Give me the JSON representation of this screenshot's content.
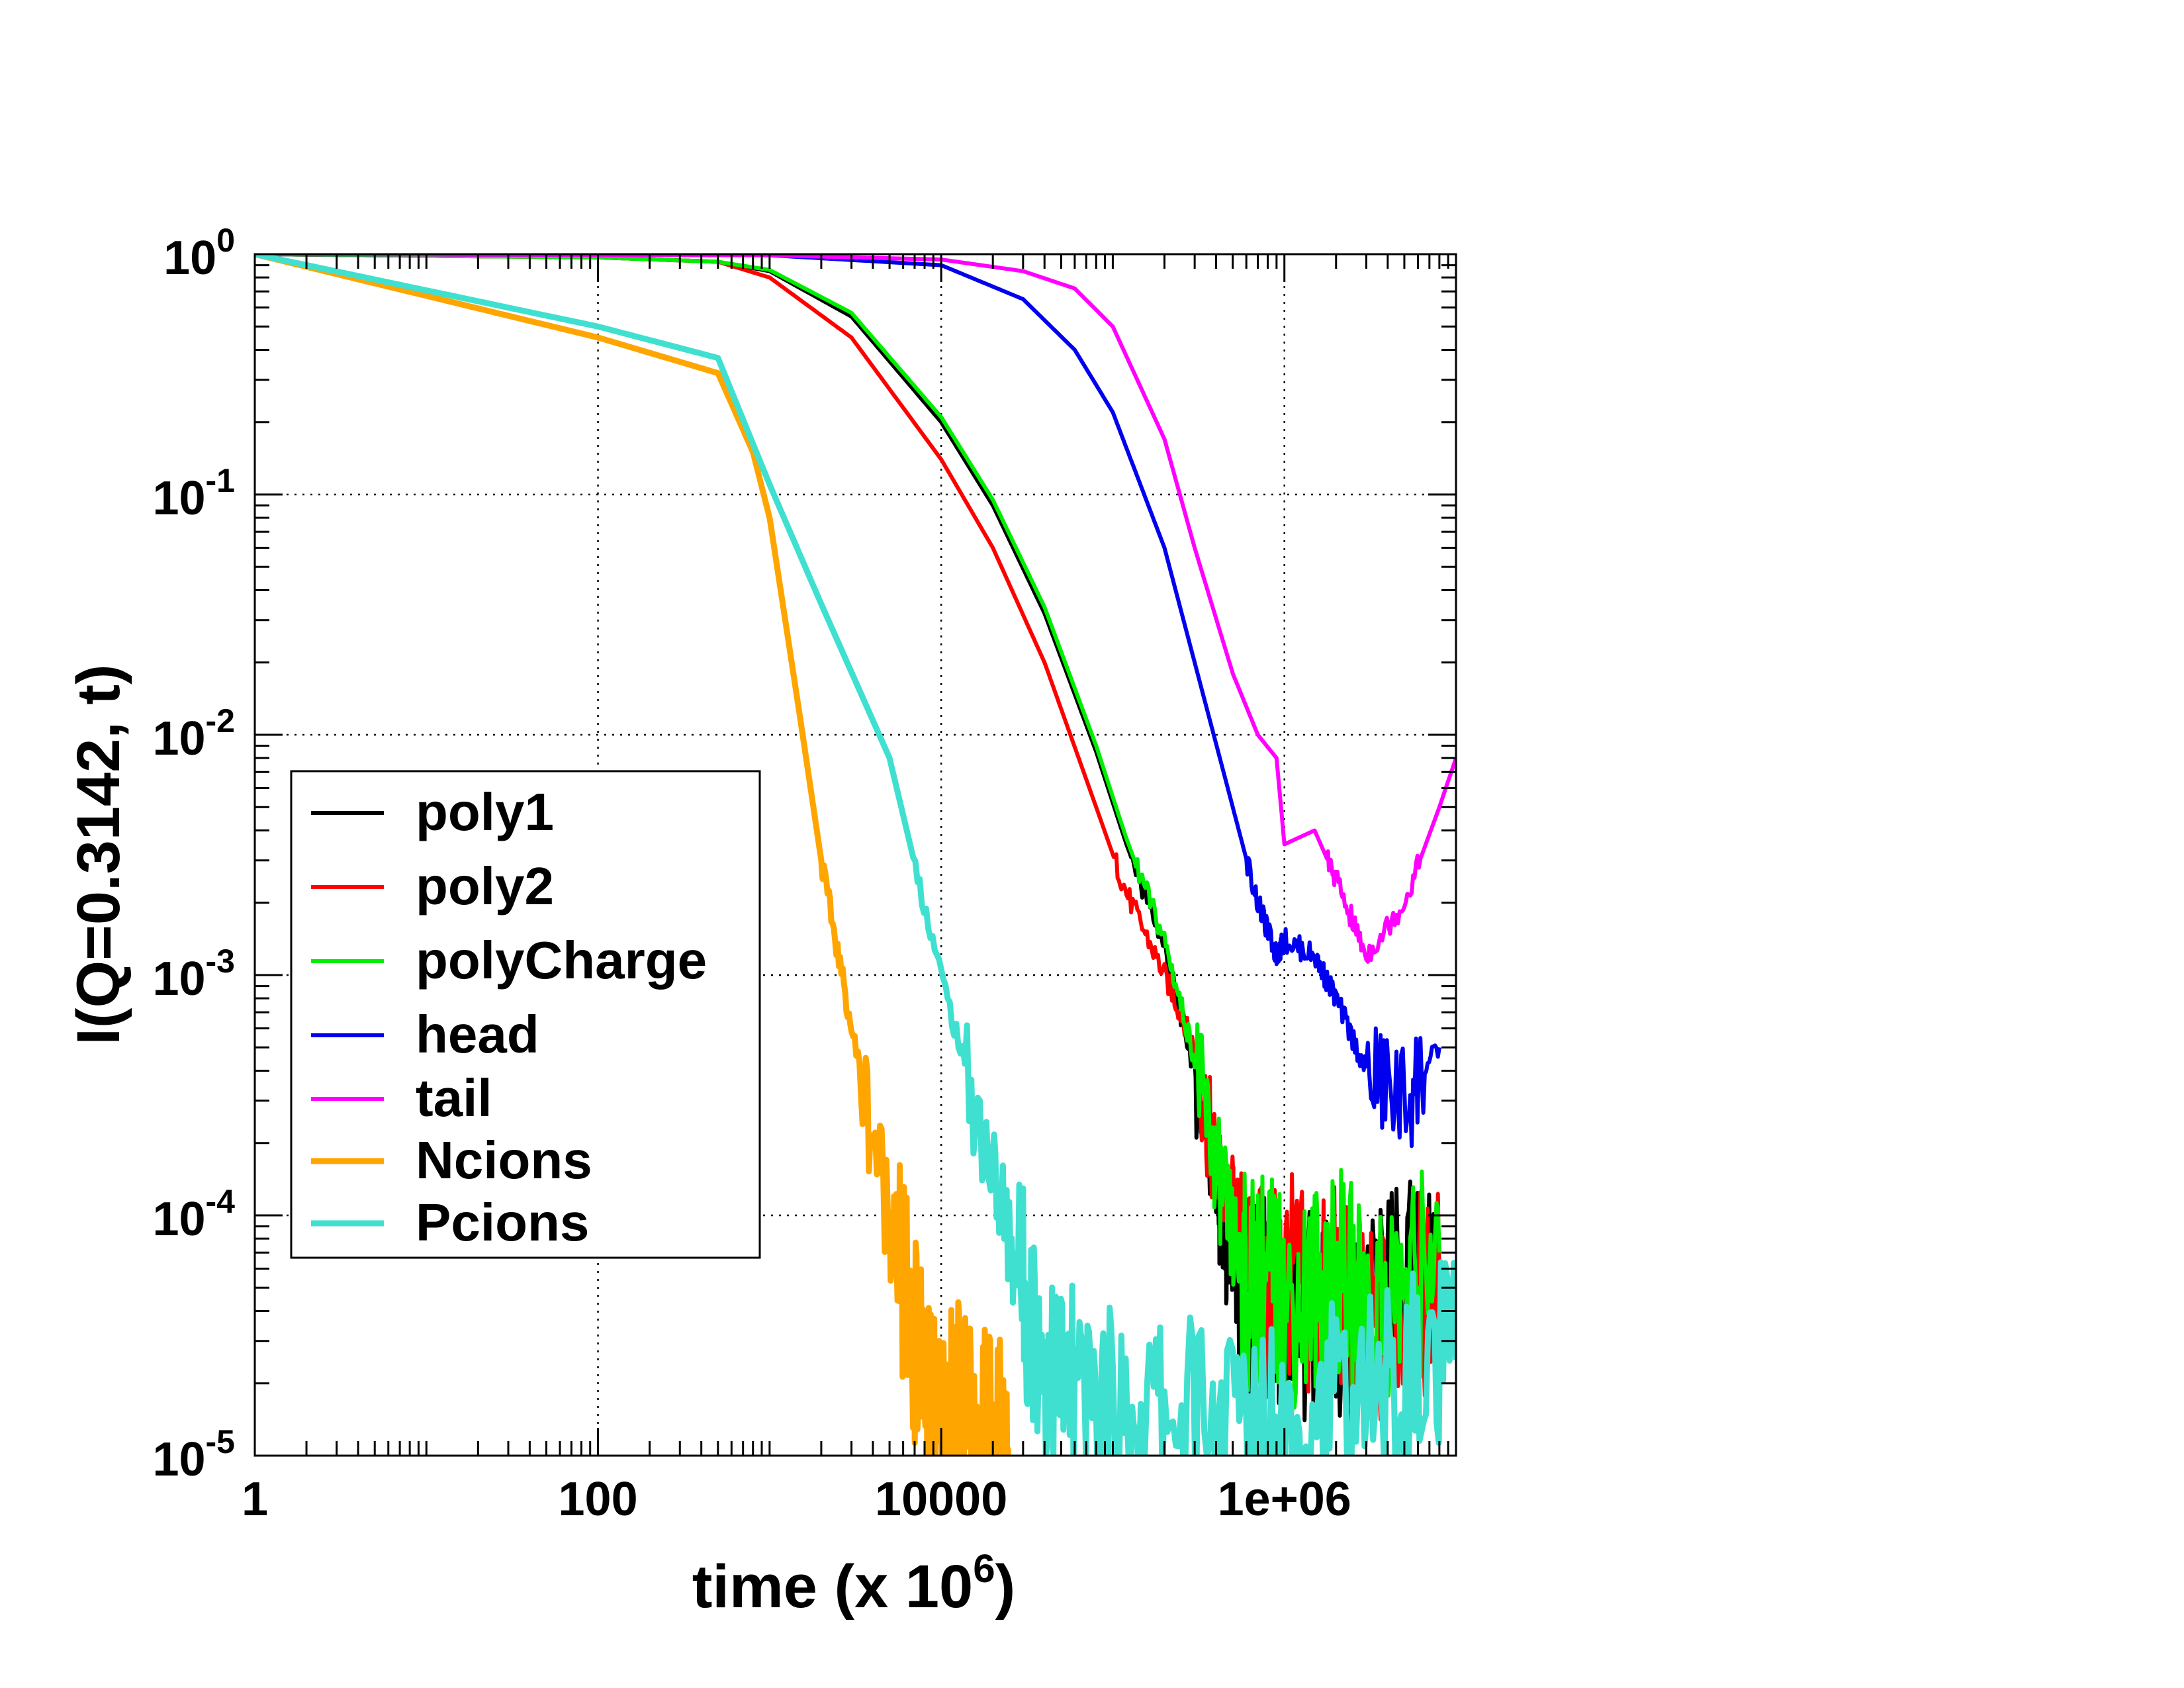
{
  "chart_data": {
    "type": "line",
    "xlabel": "time (x 10",
    "xlabel_sup": "6",
    "xlabel_close": ")",
    "ylabel": "I(Q=0.3142, t)",
    "x_scale": "log",
    "y_scale": "log",
    "xlim": [
      1,
      10000000
    ],
    "ylim": [
      1e-05,
      1
    ],
    "grid": true,
    "x_ticks": [
      {
        "value": 1,
        "label": "1"
      },
      {
        "value": 100,
        "label": "100"
      },
      {
        "value": 10000,
        "label": "10000"
      },
      {
        "value": 1000000,
        "label": "1e+06"
      }
    ],
    "y_ticks": [
      {
        "value": 1,
        "base": "10",
        "exp": "0"
      },
      {
        "value": 0.1,
        "base": "10",
        "exp": "-1"
      },
      {
        "value": 0.01,
        "base": "10",
        "exp": "-2"
      },
      {
        "value": 0.001,
        "base": "10",
        "exp": "-3"
      },
      {
        "value": 0.0001,
        "base": "10",
        "exp": "-4"
      },
      {
        "value": 1e-05,
        "base": "10",
        "exp": "-5"
      }
    ],
    "legend_position": "lower-left",
    "series": [
      {
        "name": "poly1",
        "color": "#000000",
        "width": "thin",
        "x": [
          1,
          100,
          500,
          1000,
          3000,
          10000,
          20000,
          40000,
          80000,
          120000,
          200000,
          300000,
          400000,
          450000,
          500000,
          600000,
          800000,
          1000000,
          1500000,
          2000000,
          3000000,
          5000000,
          8000000
        ],
        "y": [
          1,
          0.97,
          0.93,
          0.85,
          0.55,
          0.2,
          0.09,
          0.032,
          0.0085,
          0.0035,
          0.0013,
          0.0004,
          0.00014,
          7e-05,
          6e-05,
          4e-05,
          5e-05,
          3e-05,
          4e-05,
          3e-05,
          4e-05,
          5e-05,
          6e-05
        ]
      },
      {
        "name": "poly2",
        "color": "#ff0000",
        "width": "thin",
        "x": [
          1,
          100,
          500,
          1000,
          3000,
          10000,
          20000,
          40000,
          80000,
          120000,
          200000,
          300000,
          400000,
          600000,
          800000,
          1000000,
          1500000,
          2000000,
          3000000,
          5000000,
          8000000
        ],
        "y": [
          1,
          0.97,
          0.93,
          0.8,
          0.45,
          0.14,
          0.06,
          0.02,
          0.005,
          0.0022,
          0.001,
          0.0005,
          0.00015,
          8e-05,
          4e-05,
          6e-05,
          4e-05,
          5e-05,
          3e-05,
          4e-05,
          5e-05
        ]
      },
      {
        "name": "polyCharge",
        "color": "#00ee00",
        "width": "thin",
        "x": [
          1,
          100,
          500,
          1000,
          3000,
          10000,
          20000,
          40000,
          80000,
          120000,
          200000,
          300000,
          400000,
          500000,
          600000,
          800000,
          1000000,
          1500000,
          2000000,
          3000000,
          5000000,
          8000000
        ],
        "y": [
          1,
          0.97,
          0.93,
          0.86,
          0.57,
          0.21,
          0.095,
          0.034,
          0.009,
          0.0037,
          0.0014,
          0.00045,
          0.00016,
          8e-05,
          5e-05,
          6e-05,
          4e-05,
          5e-05,
          6e-05,
          4e-05,
          5e-05,
          7e-05
        ]
      },
      {
        "name": "head",
        "color": "#0000ee",
        "width": "thin",
        "x": [
          1,
          1000,
          10000,
          30000,
          60000,
          100000,
          200000,
          300000,
          500000,
          700000,
          900000,
          1000000,
          1500000,
          2000000,
          3000000,
          5000000,
          8000000
        ],
        "y": [
          1,
          0.99,
          0.9,
          0.65,
          0.4,
          0.22,
          0.06,
          0.02,
          0.005,
          0.002,
          0.0012,
          0.0014,
          0.0012,
          0.0008,
          0.0004,
          0.0003,
          0.0005
        ]
      },
      {
        "name": "tail",
        "color": "#ff00ff",
        "width": "thin",
        "x": [
          1,
          1000,
          10000,
          30000,
          60000,
          100000,
          200000,
          300000,
          500000,
          700000,
          900000,
          1000000,
          1500000,
          2000000,
          3000000,
          5000000,
          8000000,
          10000000
        ],
        "y": [
          1,
          0.99,
          0.95,
          0.85,
          0.72,
          0.5,
          0.17,
          0.06,
          0.018,
          0.01,
          0.008,
          0.0035,
          0.004,
          0.0025,
          0.0012,
          0.002,
          0.005,
          0.008
        ]
      },
      {
        "name": "Ncions",
        "color": "#ffa500",
        "width": "thick",
        "x": [
          1,
          100,
          500,
          800,
          1000,
          1500,
          2000,
          3000,
          5000,
          6000,
          8000,
          10000,
          12000,
          15000,
          20000,
          25000
        ],
        "y": [
          1,
          0.45,
          0.32,
          0.15,
          0.08,
          0.012,
          0.003,
          0.0006,
          0.0001,
          5e-05,
          2e-05,
          1e-05,
          1.8e-05,
          1.2e-05,
          1.5e-05,
          1e-05
        ]
      },
      {
        "name": "Pcions",
        "color": "#40e0d0",
        "width": "thick",
        "x": [
          1,
          100,
          500,
          1000,
          2000,
          5000,
          10000,
          20000,
          30000,
          40000,
          60000,
          100000,
          200000,
          500000,
          1000000,
          2000000,
          5000000,
          10000000
        ],
        "y": [
          1,
          0.5,
          0.37,
          0.11,
          0.035,
          0.008,
          0.001,
          0.00015,
          5e-05,
          2.5e-05,
          1.8e-05,
          1.5e-05,
          1.6e-05,
          1.4e-05,
          1.5e-05,
          1.6e-05,
          2e-05,
          2.5e-05
        ]
      }
    ]
  }
}
